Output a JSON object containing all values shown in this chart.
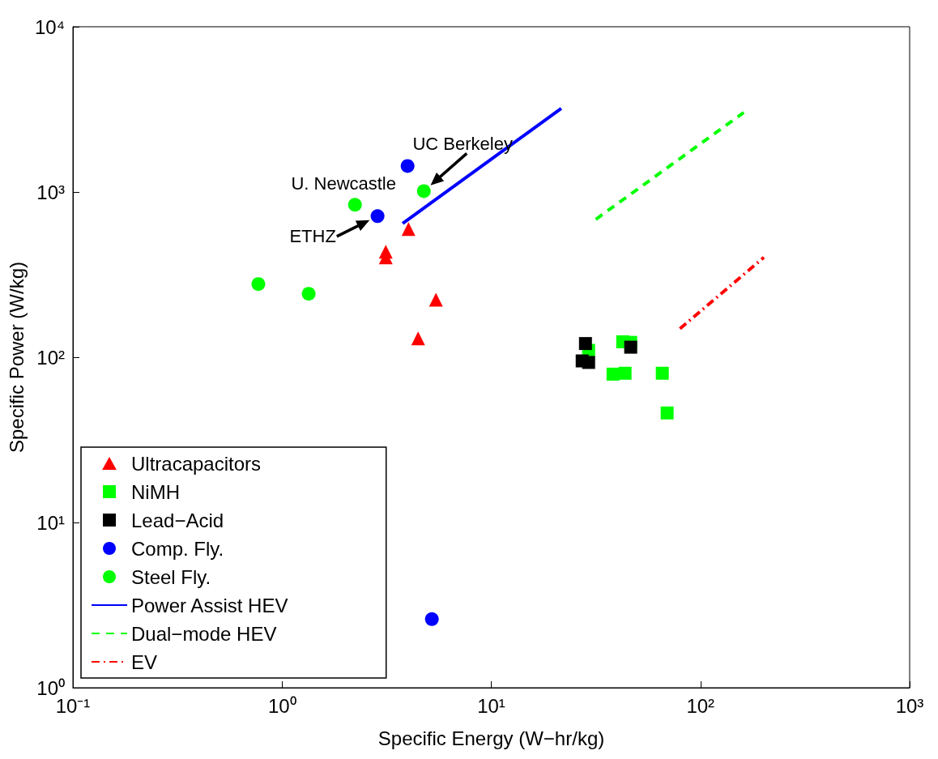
{
  "chart_data": {
    "type": "scatter",
    "xlabel": "Specific Energy (W−hr/kg)",
    "ylabel": "Specific Power (W/kg)",
    "log": "xy",
    "grid": false,
    "legend": "bottom left",
    "xlim": [
      0.1,
      1000
    ],
    "ylim": [
      1,
      10000
    ],
    "xticks": [
      {
        "value": 0.1,
        "label": "10⁻¹"
      },
      {
        "value": 1,
        "label": "10⁰"
      },
      {
        "value": 10,
        "label": "10¹"
      },
      {
        "value": 100,
        "label": "10²"
      },
      {
        "value": 1000,
        "label": "10³"
      }
    ],
    "yticks": [
      {
        "value": 1,
        "label": "10⁰"
      },
      {
        "value": 10,
        "label": "10¹"
      },
      {
        "value": 100,
        "label": "10²"
      },
      {
        "value": 1000,
        "label": "10³"
      },
      {
        "value": 10000,
        "label": "10⁴"
      }
    ],
    "series": [
      {
        "name": "Ultracapacitors",
        "marker": "triangle",
        "color": "#ff0000",
        "x": [
          4.02,
          3.13,
          3.13,
          5.44,
          4.47
        ],
        "values": [
          596,
          435,
          402,
          223,
          130
        ]
      },
      {
        "name": "NiMH",
        "marker": "square",
        "color": "#00ff00",
        "x": [
          29.2,
          42.5,
          46.4,
          38.2,
          43.6,
          65.7,
          69.3
        ],
        "values": [
          110,
          124,
          123,
          79,
          80,
          80,
          46
        ]
      },
      {
        "name": "Lead−Acid",
        "marker": "square",
        "color": "#000000",
        "x": [
          28.2,
          27.2,
          29.2,
          46.4
        ],
        "values": [
          121,
          95,
          93,
          115
        ]
      },
      {
        "name": "Comp. Fly.",
        "marker": "circle",
        "color": "#0000ff",
        "x": [
          3.98,
          2.86,
          5.2
        ],
        "values": [
          1437,
          714,
          2.6
        ]
      },
      {
        "name": "Steel Fly.",
        "marker": "circle",
        "color": "#00ff00",
        "x": [
          2.23,
          4.76,
          0.77,
          1.34
        ],
        "values": [
          836,
          1012,
          277,
          242
        ]
      },
      {
        "name": "Power Assist HEV",
        "type": "line",
        "marker": "none",
        "line_style": "solid",
        "color": "#0000ff",
        "x": [
          3.77,
          21.6
        ],
        "values": [
          645,
          3200
        ]
      },
      {
        "name": "Dual−mode HEV",
        "type": "line",
        "marker": "none",
        "line_style": "dashed",
        "color": "#00ff00",
        "x": [
          31.6,
          161
        ],
        "values": [
          683,
          3025
        ]
      },
      {
        "name": "EV",
        "type": "line",
        "marker": "none",
        "line_style": "dashdot",
        "color": "#ff0000",
        "x": [
          79.8,
          201
        ],
        "values": [
          149,
          402
        ]
      }
    ],
    "annotations": [
      {
        "text": "U. Newcastle",
        "x": 2.23,
        "y": 836
      },
      {
        "text": "UC Berkeley",
        "x": 4.76,
        "y": 1012
      },
      {
        "text": "ETHZ",
        "x": 2.86,
        "y": 714
      }
    ]
  }
}
